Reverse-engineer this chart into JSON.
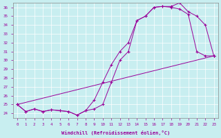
{
  "xlabel": "Windchill (Refroidissement éolien,°C)",
  "line_color": "#990099",
  "bg_color": "#c8eef0",
  "ylim": [
    23.5,
    36.5
  ],
  "yticks": [
    24,
    25,
    26,
    27,
    28,
    29,
    30,
    31,
    32,
    33,
    34,
    35,
    36
  ],
  "xticks": [
    0,
    1,
    2,
    3,
    4,
    5,
    6,
    7,
    8,
    9,
    10,
    11,
    12,
    13,
    14,
    15,
    16,
    17,
    18,
    19,
    20,
    21,
    22,
    23
  ],
  "curve1_x": [
    0,
    1,
    2,
    3,
    4,
    5,
    6,
    7,
    8,
    9,
    10,
    11,
    12,
    13,
    14,
    15,
    16,
    17,
    18,
    19,
    20,
    21,
    22,
    23
  ],
  "curve1_y": [
    25.0,
    24.2,
    24.5,
    24.2,
    24.4,
    24.3,
    24.2,
    23.8,
    24.3,
    24.5,
    25.0,
    27.5,
    30.0,
    31.0,
    34.5,
    35.0,
    36.0,
    36.1,
    36.0,
    35.8,
    35.2,
    31.0,
    30.5,
    30.5
  ],
  "curve2_x": [
    0,
    1,
    2,
    3,
    4,
    5,
    6,
    7,
    8,
    9,
    10,
    11,
    12,
    13,
    14,
    15,
    16,
    17,
    18,
    19,
    20,
    21,
    22,
    23
  ],
  "curve2_y": [
    25.0,
    24.2,
    24.5,
    24.2,
    24.4,
    24.3,
    24.2,
    23.8,
    24.3,
    25.5,
    27.5,
    29.5,
    31.0,
    32.0,
    34.5,
    35.0,
    36.0,
    36.1,
    36.1,
    36.5,
    35.5,
    35.0,
    34.0,
    30.5
  ],
  "curve3_x": [
    0,
    23
  ],
  "curve3_y": [
    25.0,
    30.5
  ]
}
